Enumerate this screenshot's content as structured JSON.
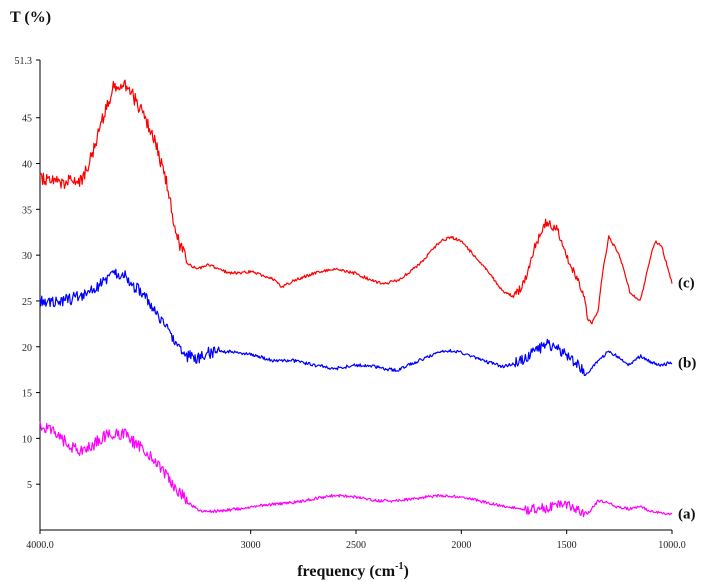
{
  "chart_data": {
    "type": "line",
    "title": "",
    "ylabel": "T (%)",
    "xlabel_main": "frequency (cm",
    "xlabel_sup": "-1",
    "xlabel_close": ")",
    "xlim": [
      4000,
      1000
    ],
    "ylim": [
      0,
      51.3
    ],
    "x_ticks": [
      {
        "value": 4000,
        "label": "4000.0"
      },
      {
        "value": 3000,
        "label": "3000"
      },
      {
        "value": 2500,
        "label": "2500"
      },
      {
        "value": 2000,
        "label": "2000"
      },
      {
        "value": 1500,
        "label": "1500"
      },
      {
        "value": 1000,
        "label": "1000.0"
      }
    ],
    "y_ticks": [
      {
        "value": 5,
        "label": "5"
      },
      {
        "value": 10,
        "label": "10"
      },
      {
        "value": 15,
        "label": "15"
      },
      {
        "value": 20,
        "label": "20"
      },
      {
        "value": 25,
        "label": "25"
      },
      {
        "value": 30,
        "label": "30"
      },
      {
        "value": 35,
        "label": "35"
      },
      {
        "value": 40,
        "label": "40"
      },
      {
        "value": 45,
        "label": "45"
      },
      {
        "value": 51.3,
        "label": "51.3"
      }
    ],
    "grid": false,
    "series": [
      {
        "name": "(c)",
        "color": "#ff0000",
        "x": [
          4000,
          3900,
          3800,
          3750,
          3700,
          3650,
          3600,
          3550,
          3500,
          3450,
          3400,
          3350,
          3300,
          3250,
          3200,
          3150,
          3100,
          3000,
          2900,
          2850,
          2800,
          2700,
          2600,
          2500,
          2400,
          2350,
          2300,
          2200,
          2100,
          2050,
          2000,
          1900,
          1800,
          1750,
          1700,
          1650,
          1600,
          1550,
          1500,
          1480,
          1450,
          1420,
          1400,
          1380,
          1350,
          1330,
          1300,
          1250,
          1200,
          1150,
          1100,
          1080,
          1050,
          1000
        ],
        "y": [
          38.5,
          38.0,
          38.2,
          41,
          45,
          48.5,
          49,
          47,
          45,
          42,
          38,
          32,
          29,
          28.5,
          29,
          28.5,
          28,
          28.2,
          27.5,
          26.5,
          27.2,
          28,
          28.5,
          28,
          27,
          27,
          27.2,
          29,
          31.5,
          32,
          31.5,
          29,
          26,
          25.5,
          27,
          31,
          33.5,
          33,
          30,
          29,
          27.5,
          26,
          23,
          22.5,
          24,
          28,
          32,
          30,
          26,
          25,
          30,
          31.5,
          31,
          27
        ]
      },
      {
        "name": "(b)",
        "color": "#0000ff",
        "x": [
          4000,
          3900,
          3800,
          3700,
          3650,
          3600,
          3550,
          3500,
          3450,
          3400,
          3350,
          3300,
          3250,
          3200,
          3100,
          3000,
          2900,
          2800,
          2700,
          2600,
          2500,
          2400,
          2350,
          2300,
          2200,
          2100,
          2050,
          2000,
          1900,
          1800,
          1700,
          1650,
          1600,
          1550,
          1500,
          1450,
          1400,
          1380,
          1350,
          1300,
          1250,
          1200,
          1150,
          1100,
          1050,
          1000
        ],
        "y": [
          25,
          25,
          25.5,
          27,
          28,
          28,
          26.5,
          25.5,
          24,
          22,
          20.5,
          19,
          18.8,
          19.3,
          19.5,
          19.2,
          18.5,
          18.5,
          18,
          17.6,
          18,
          17.8,
          17.5,
          17.5,
          18.5,
          19.5,
          19.6,
          19.4,
          18.5,
          17.8,
          18.6,
          19.5,
          20.3,
          19.8,
          19,
          18,
          17.2,
          17.8,
          18.5,
          19.5,
          18.8,
          18,
          19,
          18.3,
          18,
          18.3
        ]
      },
      {
        "name": "(a)",
        "color": "#ff00ff",
        "x": [
          4000,
          3950,
          3900,
          3850,
          3800,
          3750,
          3700,
          3650,
          3600,
          3550,
          3500,
          3450,
          3400,
          3350,
          3300,
          3250,
          3200,
          3100,
          3000,
          2900,
          2800,
          2700,
          2600,
          2500,
          2400,
          2300,
          2200,
          2100,
          2000,
          1900,
          1800,
          1700,
          1600,
          1500,
          1450,
          1400,
          1350,
          1300,
          1250,
          1200,
          1150,
          1100,
          1050,
          1000
        ],
        "y": [
          11.5,
          11,
          10,
          9,
          8.7,
          9.2,
          10.2,
          10.5,
          10.5,
          9.5,
          8.7,
          7.5,
          6,
          4.5,
          3,
          2.2,
          2,
          2.2,
          2.5,
          2.8,
          3,
          3.4,
          3.8,
          3.6,
          3.2,
          3.2,
          3.5,
          3.8,
          3.6,
          3.1,
          2.6,
          2.2,
          2.4,
          2.8,
          2.1,
          1.8,
          3.2,
          3,
          2.4,
          2.3,
          2.5,
          2.1,
          1.8,
          1.8
        ]
      }
    ],
    "annotations": [
      {
        "label": "(c)",
        "series": 0
      },
      {
        "label": "(b)",
        "series": 1
      },
      {
        "label": "(a)",
        "series": 2
      }
    ]
  }
}
